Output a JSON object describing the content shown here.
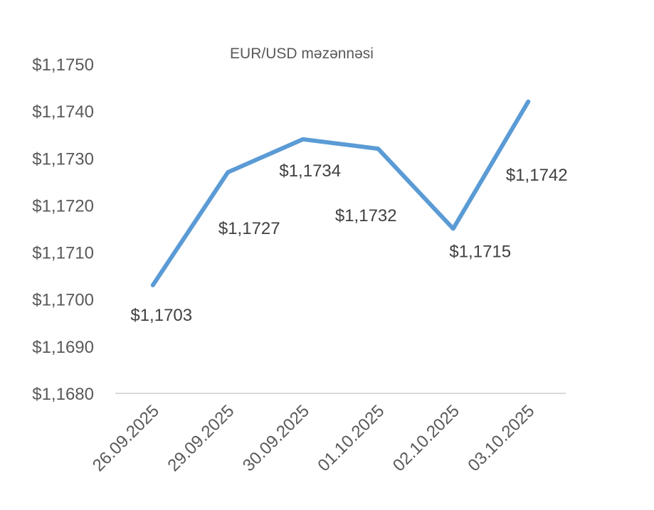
{
  "chart_data": {
    "type": "line",
    "title": "EUR/USD məzənnəsi",
    "xlabel": "",
    "ylabel": "",
    "categories": [
      "26.09.2025",
      "29.09.2025",
      "30.09.2025",
      "01.10.2025",
      "02.10.2025",
      "03.10.2025"
    ],
    "series": [
      {
        "values": [
          1.1703,
          1.1727,
          1.1734,
          1.1732,
          1.1715,
          1.1742
        ],
        "color": "#5B9BD5"
      }
    ],
    "data_labels": [
      "$1,1703",
      "$1,1727",
      "$1,1734",
      "$1,1732",
      "$1,1715",
      "$1,1742"
    ],
    "ylim": [
      1.168,
      1.175
    ],
    "y_ticks": [
      1.175,
      1.174,
      1.173,
      1.172,
      1.171,
      1.17,
      1.169,
      1.168
    ],
    "y_tick_labels": [
      "$1,1750",
      "$1,1740",
      "$1,1730",
      "$1,1720",
      "$1,1710",
      "$1,1700",
      "$1,1690",
      "$1,1680"
    ],
    "grid": false,
    "legend": "none",
    "axis_color": "#D9D9D9"
  }
}
